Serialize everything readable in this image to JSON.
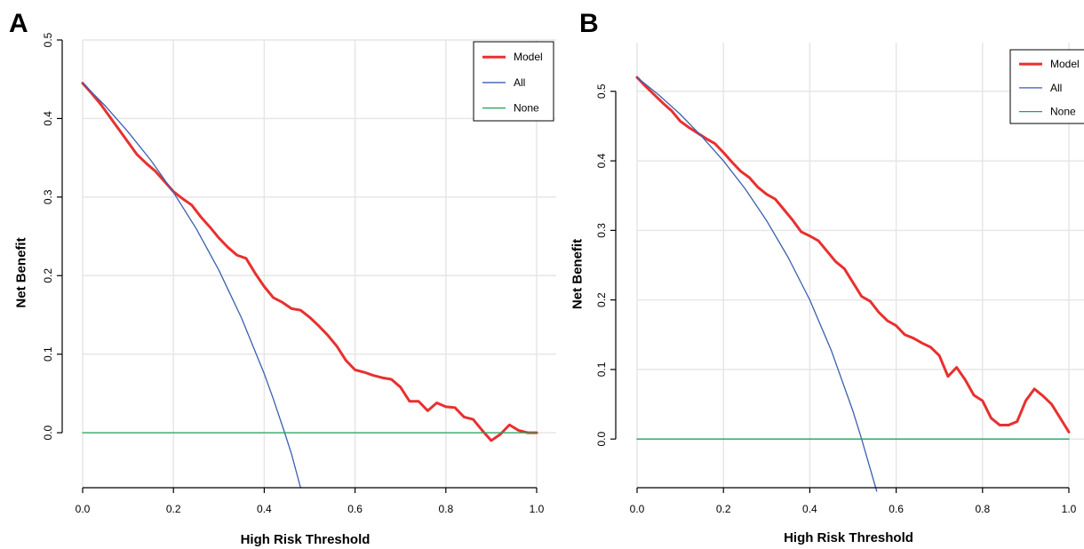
{
  "chart_data": [
    {
      "type": "line",
      "panel_label": "A",
      "xlabel": "High Risk Threshold",
      "ylabel": "Net Benefit",
      "xlim": [
        0,
        1
      ],
      "ylim": [
        -0.07,
        0.5
      ],
      "xticks": [
        "0.0",
        "0.2",
        "0.4",
        "0.6",
        "0.8",
        "1.0"
      ],
      "yticks": [
        "0.0",
        "0.1",
        "0.2",
        "0.3",
        "0.4",
        "0.5"
      ],
      "grid": true,
      "legend_position": "top-right",
      "series": [
        {
          "name": "Model",
          "color": "#e8302f",
          "x": [
            0.0,
            0.02,
            0.04,
            0.06,
            0.08,
            0.1,
            0.12,
            0.14,
            0.16,
            0.18,
            0.2,
            0.22,
            0.24,
            0.26,
            0.28,
            0.3,
            0.32,
            0.34,
            0.36,
            0.38,
            0.4,
            0.42,
            0.44,
            0.46,
            0.48,
            0.5,
            0.52,
            0.54,
            0.56,
            0.58,
            0.6,
            0.62,
            0.64,
            0.66,
            0.68,
            0.7,
            0.72,
            0.74,
            0.76,
            0.78,
            0.8,
            0.82,
            0.84,
            0.86,
            0.88,
            0.9,
            0.92,
            0.94,
            0.96,
            0.98,
            1.0
          ],
          "y": [
            0.445,
            0.432,
            0.418,
            0.402,
            0.386,
            0.37,
            0.354,
            0.343,
            0.333,
            0.32,
            0.307,
            0.298,
            0.29,
            0.275,
            0.262,
            0.248,
            0.236,
            0.226,
            0.222,
            0.203,
            0.186,
            0.172,
            0.166,
            0.158,
            0.156,
            0.147,
            0.136,
            0.124,
            0.11,
            0.092,
            0.08,
            0.077,
            0.073,
            0.07,
            0.068,
            0.058,
            0.04,
            0.04,
            0.028,
            0.038,
            0.033,
            0.032,
            0.02,
            0.017,
            0.003,
            -0.01,
            -0.002,
            0.01,
            0.003,
            0.0,
            0.0
          ]
        },
        {
          "name": "All",
          "color": "#3a5fb0",
          "x": [
            0.0,
            0.05,
            0.1,
            0.15,
            0.2,
            0.25,
            0.3,
            0.35,
            0.4,
            0.42,
            0.445,
            0.46,
            0.48
          ],
          "y": [
            0.445,
            0.416,
            0.383,
            0.347,
            0.306,
            0.26,
            0.207,
            0.146,
            0.075,
            0.043,
            0.0,
            -0.027,
            -0.07
          ]
        },
        {
          "name": "None",
          "color": "#1fa35a",
          "x": [
            0.0,
            1.0
          ],
          "y": [
            0.0,
            0.0
          ]
        }
      ]
    },
    {
      "type": "line",
      "panel_label": "B",
      "xlabel": "High Risk Threshold",
      "ylabel": "Net Benefit",
      "xlim": [
        0,
        1
      ],
      "ylim": [
        -0.07,
        0.57
      ],
      "xticks": [
        "0.0",
        "0.2",
        "0.4",
        "0.6",
        "0.8",
        "1.0"
      ],
      "yticks": [
        "0.0",
        "0.1",
        "0.2",
        "0.3",
        "0.4",
        "0.5"
      ],
      "grid": true,
      "legend_position": "top-right",
      "series": [
        {
          "name": "Model",
          "color": "#e8302f",
          "x": [
            0.0,
            0.02,
            0.04,
            0.06,
            0.08,
            0.1,
            0.12,
            0.14,
            0.16,
            0.18,
            0.2,
            0.22,
            0.24,
            0.26,
            0.28,
            0.3,
            0.32,
            0.34,
            0.36,
            0.38,
            0.4,
            0.42,
            0.44,
            0.46,
            0.48,
            0.5,
            0.52,
            0.54,
            0.56,
            0.58,
            0.6,
            0.62,
            0.64,
            0.66,
            0.68,
            0.7,
            0.72,
            0.74,
            0.76,
            0.78,
            0.8,
            0.82,
            0.84,
            0.86,
            0.88,
            0.9,
            0.92,
            0.94,
            0.96,
            0.98,
            1.0
          ],
          "y": [
            0.52,
            0.507,
            0.495,
            0.483,
            0.472,
            0.457,
            0.448,
            0.44,
            0.432,
            0.425,
            0.412,
            0.398,
            0.385,
            0.376,
            0.362,
            0.352,
            0.345,
            0.33,
            0.315,
            0.298,
            0.292,
            0.285,
            0.27,
            0.255,
            0.245,
            0.225,
            0.205,
            0.198,
            0.182,
            0.17,
            0.163,
            0.15,
            0.145,
            0.138,
            0.132,
            0.12,
            0.09,
            0.103,
            0.085,
            0.063,
            0.055,
            0.03,
            0.02,
            0.02,
            0.025,
            0.055,
            0.072,
            0.062,
            0.05,
            0.03,
            0.01
          ]
        },
        {
          "name": "All",
          "color": "#3a5fb0",
          "x": [
            0.0,
            0.05,
            0.1,
            0.15,
            0.2,
            0.25,
            0.3,
            0.35,
            0.4,
            0.45,
            0.5,
            0.52,
            0.54,
            0.555
          ],
          "y": [
            0.52,
            0.495,
            0.467,
            0.435,
            0.4,
            0.36,
            0.314,
            0.261,
            0.2,
            0.127,
            0.04,
            0.0,
            -0.043,
            -0.075
          ]
        },
        {
          "name": "None",
          "color": "#1fa35a",
          "x": [
            0.0,
            1.0
          ],
          "y": [
            0.0,
            0.0
          ]
        }
      ]
    }
  ]
}
